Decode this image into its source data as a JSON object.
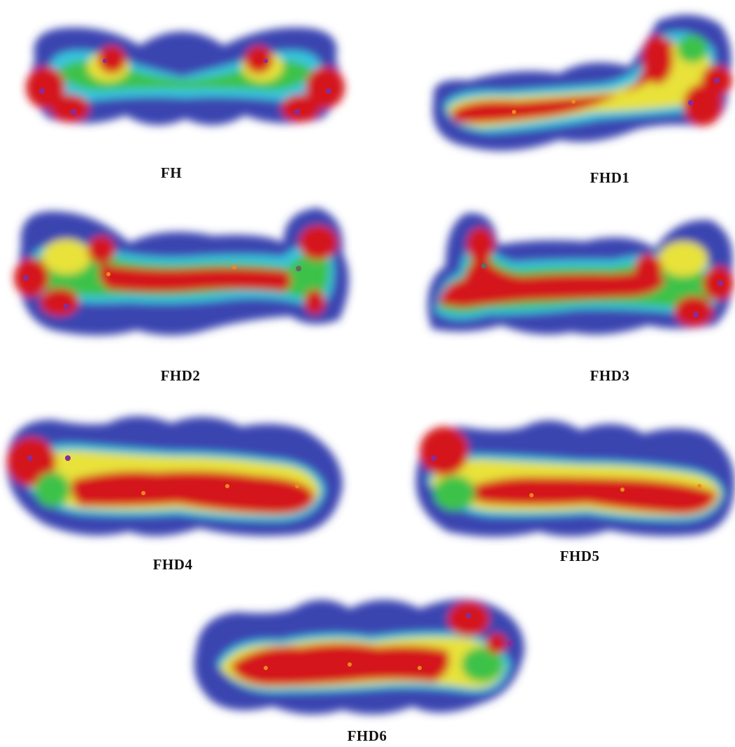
{
  "figure": {
    "panels": [
      {
        "id": "fh",
        "label": "FH"
      },
      {
        "id": "fhd1",
        "label": "FHD1"
      },
      {
        "id": "fhd2",
        "label": "FHD2"
      },
      {
        "id": "fhd3",
        "label": "FHD3"
      },
      {
        "id": "fhd4",
        "label": "FHD4"
      },
      {
        "id": "fhd5",
        "label": "FHD5"
      },
      {
        "id": "fhd6",
        "label": "FHD6"
      }
    ]
  },
  "colors": {
    "negative": "#d4141c",
    "orange": "#f08a1c",
    "yellow": "#e8e23a",
    "green": "#3cc24a",
    "cyan": "#38c6e0",
    "positive": "#3a45b0",
    "atom_oxygen": "#8a2a9a",
    "atom_carbon": "#e8a040"
  }
}
